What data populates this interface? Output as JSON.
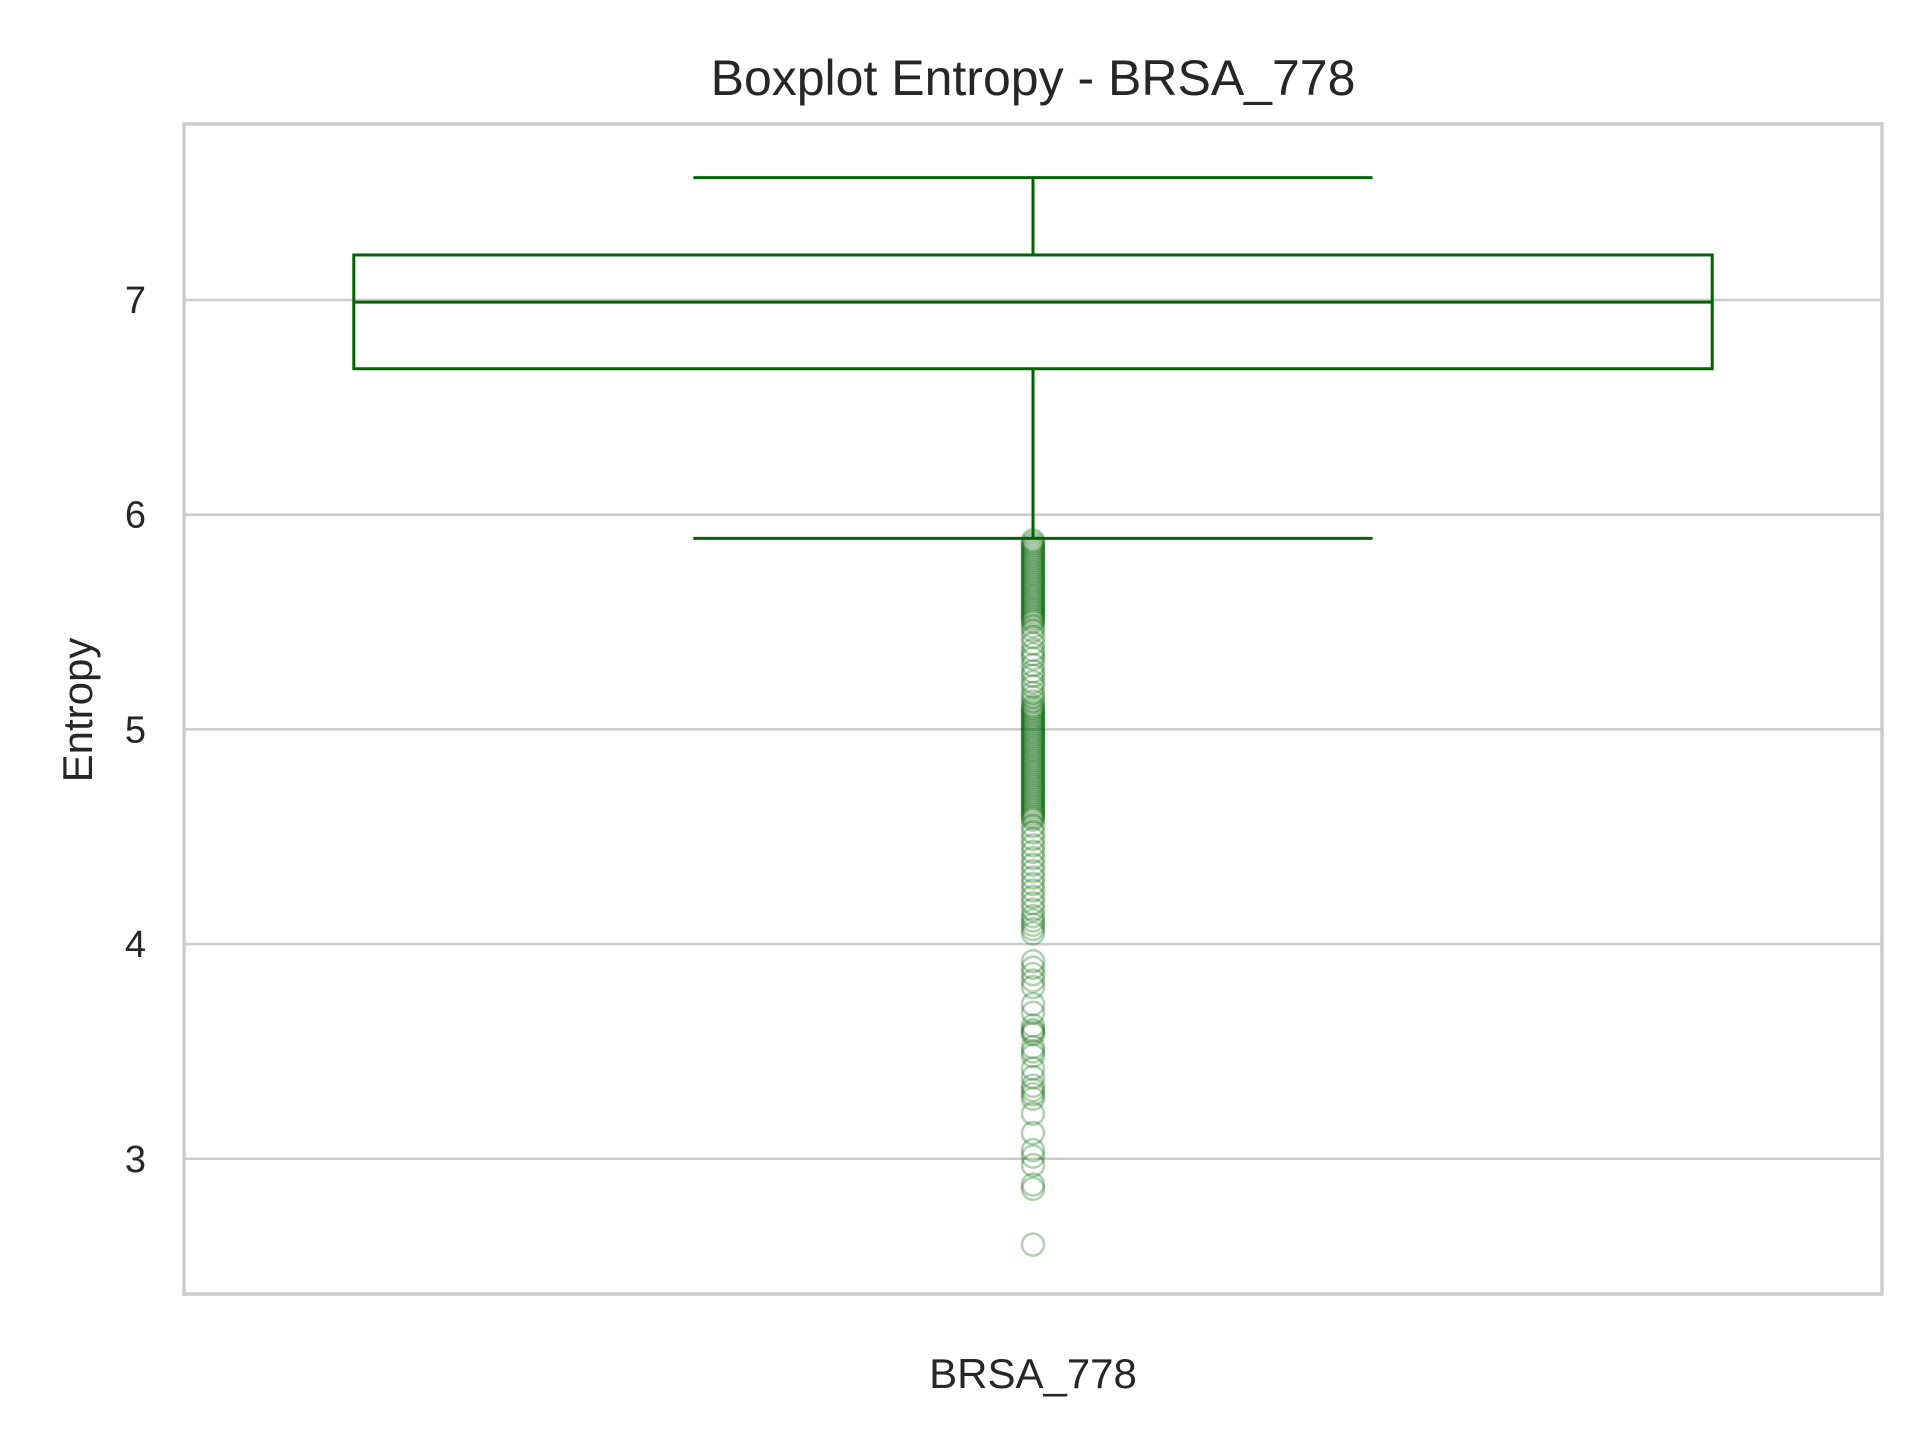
{
  "chart_data": {
    "type": "box",
    "title": "Boxplot Entropy - BRSA_778",
    "ylabel": "Entropy",
    "xlabel": "",
    "categories": [
      "BRSA_778"
    ],
    "ylim": [
      2.37,
      7.82
    ],
    "yticks": [
      3,
      4,
      5,
      6,
      7
    ],
    "grid": true,
    "color": "#006400",
    "series": [
      {
        "category": "BRSA_778",
        "whisker_high": 7.57,
        "q3": 7.21,
        "median": 6.99,
        "q1": 6.68,
        "whisker_low": 5.89,
        "outliers": [
          5.88,
          5.87,
          5.86,
          5.85,
          5.84,
          5.83,
          5.82,
          5.81,
          5.8,
          5.79,
          5.78,
          5.77,
          5.76,
          5.75,
          5.74,
          5.73,
          5.72,
          5.71,
          5.7,
          5.69,
          5.68,
          5.67,
          5.66,
          5.65,
          5.64,
          5.63,
          5.62,
          5.61,
          5.6,
          5.59,
          5.58,
          5.57,
          5.56,
          5.55,
          5.54,
          5.53,
          5.52,
          5.51,
          5.5,
          5.48,
          5.46,
          5.43,
          5.4,
          5.37,
          5.35,
          5.33,
          5.3,
          5.27,
          5.25,
          5.22,
          5.2,
          5.17,
          5.15,
          5.13,
          5.11,
          5.1,
          5.09,
          5.08,
          5.07,
          5.06,
          5.05,
          5.04,
          5.03,
          5.02,
          5.01,
          5.0,
          4.99,
          4.98,
          4.97,
          4.96,
          4.95,
          4.94,
          4.93,
          4.92,
          4.91,
          4.9,
          4.89,
          4.88,
          4.87,
          4.86,
          4.85,
          4.84,
          4.83,
          4.82,
          4.81,
          4.8,
          4.79,
          4.78,
          4.77,
          4.76,
          4.75,
          4.74,
          4.73,
          4.72,
          4.71,
          4.7,
          4.69,
          4.68,
          4.67,
          4.66,
          4.65,
          4.64,
          4.63,
          4.62,
          4.61,
          4.6,
          4.59,
          4.58,
          4.55,
          4.52,
          4.49,
          4.46,
          4.43,
          4.4,
          4.37,
          4.34,
          4.31,
          4.28,
          4.25,
          4.22,
          4.19,
          4.16,
          4.13,
          4.11,
          4.09,
          4.07,
          4.05,
          3.92,
          3.89,
          3.86,
          3.83,
          3.8,
          3.72,
          3.68,
          3.62,
          3.6,
          3.59,
          3.58,
          3.52,
          3.5,
          3.48,
          3.42,
          3.38,
          3.34,
          3.32,
          3.3,
          3.28,
          3.21,
          3.12,
          3.04,
          3.01,
          2.97,
          2.88,
          2.86,
          2.6
        ]
      }
    ]
  }
}
